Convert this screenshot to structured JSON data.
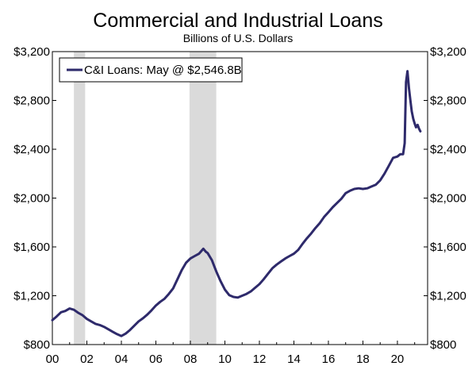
{
  "chart_data": {
    "type": "line",
    "title": "Commercial and Industrial Loans",
    "subtitle": "Billions of U.S. Dollars",
    "xlabel": "",
    "ylabel": "",
    "xlim": [
      2000.0,
      2021.75
    ],
    "ylim": [
      800,
      3200
    ],
    "y_ticks": [
      800,
      1200,
      1600,
      2000,
      2400,
      2800,
      3200
    ],
    "y_tick_labels": [
      "$800",
      "$1,200",
      "$1,600",
      "$2,000",
      "$2,400",
      "$2,800",
      "$3,200"
    ],
    "x_ticks": [
      2000,
      2002,
      2004,
      2006,
      2008,
      2010,
      2012,
      2014,
      2016,
      2018,
      2020
    ],
    "x_tick_labels": [
      "00",
      "02",
      "04",
      "06",
      "08",
      "10",
      "12",
      "14",
      "16",
      "18",
      "20"
    ],
    "dual_y_axis": true,
    "grid": false,
    "legend": {
      "position": "top-left",
      "label": "C&I Loans: May @ $2,546.8B"
    },
    "recessions": [
      [
        2001.25,
        2001.9
      ],
      [
        2007.95,
        2009.5
      ]
    ],
    "series": [
      {
        "name": "C&I Loans: May @ $2,546.8B",
        "color": "#2e2a6b",
        "x": [
          2000.0,
          2000.25,
          2000.5,
          2000.75,
          2001.0,
          2001.25,
          2001.5,
          2001.75,
          2002.0,
          2002.25,
          2002.5,
          2002.75,
          2003.0,
          2003.25,
          2003.5,
          2003.75,
          2004.0,
          2004.25,
          2004.5,
          2004.75,
          2005.0,
          2005.25,
          2005.5,
          2005.75,
          2006.0,
          2006.25,
          2006.5,
          2006.75,
          2007.0,
          2007.25,
          2007.5,
          2007.75,
          2008.0,
          2008.25,
          2008.5,
          2008.75,
          2008.9,
          2009.0,
          2009.25,
          2009.5,
          2009.75,
          2010.0,
          2010.25,
          2010.5,
          2010.75,
          2011.0,
          2011.25,
          2011.5,
          2011.75,
          2012.0,
          2012.25,
          2012.5,
          2012.75,
          2013.0,
          2013.25,
          2013.5,
          2013.75,
          2014.0,
          2014.25,
          2014.5,
          2014.75,
          2015.0,
          2015.25,
          2015.5,
          2015.75,
          2016.0,
          2016.25,
          2016.5,
          2016.75,
          2017.0,
          2017.25,
          2017.5,
          2017.75,
          2018.0,
          2018.25,
          2018.5,
          2018.75,
          2019.0,
          2019.25,
          2019.5,
          2019.75,
          2020.0,
          2020.08,
          2020.17,
          2020.25,
          2020.33,
          2020.42,
          2020.5,
          2020.58,
          2020.67,
          2020.75,
          2020.83,
          2020.92,
          2021.0,
          2021.08,
          2021.17,
          2021.25,
          2021.33
        ],
        "values": [
          1000,
          1030,
          1065,
          1075,
          1095,
          1085,
          1060,
          1040,
          1010,
          990,
          970,
          960,
          945,
          925,
          905,
          885,
          870,
          890,
          920,
          955,
          990,
          1015,
          1045,
          1080,
          1120,
          1150,
          1175,
          1215,
          1260,
          1335,
          1410,
          1470,
          1505,
          1525,
          1545,
          1585,
          1560,
          1550,
          1490,
          1400,
          1320,
          1250,
          1205,
          1190,
          1185,
          1200,
          1215,
          1235,
          1265,
          1295,
          1335,
          1380,
          1425,
          1455,
          1480,
          1505,
          1525,
          1545,
          1575,
          1625,
          1670,
          1710,
          1755,
          1795,
          1845,
          1885,
          1925,
          1960,
          1995,
          2040,
          2060,
          2075,
          2080,
          2075,
          2080,
          2095,
          2110,
          2145,
          2200,
          2265,
          2330,
          2340,
          2350,
          2360,
          2360,
          2360,
          2450,
          2950,
          3040,
          2900,
          2800,
          2710,
          2650,
          2610,
          2580,
          2600,
          2570,
          2547
        ]
      }
    ]
  }
}
